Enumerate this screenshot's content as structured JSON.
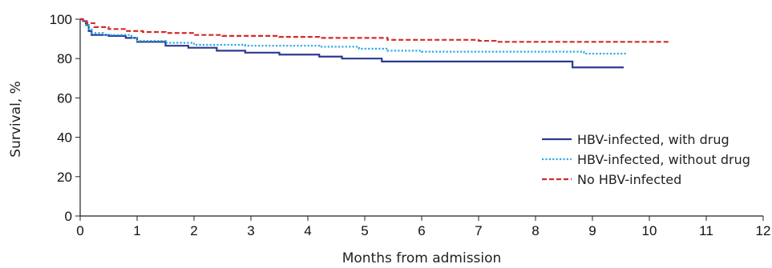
{
  "chart_data": {
    "type": "line",
    "step": true,
    "xlabel": "Months from admission",
    "ylabel": "Survival, %",
    "xlim": [
      0,
      12
    ],
    "ylim": [
      0,
      100
    ],
    "x_ticks": [
      0,
      1,
      2,
      3,
      4,
      5,
      6,
      7,
      8,
      9,
      10,
      11,
      12
    ],
    "y_ticks": [
      0,
      20,
      40,
      60,
      80,
      100
    ],
    "grid": false,
    "legend_position": "right",
    "series": [
      {
        "name": "HBV-infected, with drug",
        "color": "#2b3a8f",
        "dash": "solid",
        "points": [
          [
            0,
            100
          ],
          [
            0.05,
            99
          ],
          [
            0.1,
            97
          ],
          [
            0.15,
            94
          ],
          [
            0.2,
            92
          ],
          [
            0.5,
            91.5
          ],
          [
            0.8,
            90.5
          ],
          [
            1.0,
            88.5
          ],
          [
            1.5,
            86.5
          ],
          [
            1.9,
            85.5
          ],
          [
            2.4,
            84
          ],
          [
            2.9,
            83
          ],
          [
            3.5,
            82
          ],
          [
            4.2,
            81
          ],
          [
            4.6,
            80
          ],
          [
            5.3,
            78.5
          ],
          [
            6.0,
            78.5
          ],
          [
            8.6,
            78.5
          ],
          [
            8.65,
            75.5
          ],
          [
            9.55,
            75.5
          ]
        ]
      },
      {
        "name": "HBV-infected, without drug",
        "color": "#29abe2",
        "dash": "dotted",
        "points": [
          [
            0,
            100
          ],
          [
            0.05,
            99
          ],
          [
            0.1,
            97
          ],
          [
            0.15,
            95
          ],
          [
            0.2,
            93
          ],
          [
            0.4,
            92
          ],
          [
            0.9,
            90.5
          ],
          [
            1.0,
            89
          ],
          [
            1.5,
            88
          ],
          [
            2.0,
            87
          ],
          [
            2.9,
            86.5
          ],
          [
            4.2,
            86
          ],
          [
            4.9,
            85
          ],
          [
            5.4,
            84
          ],
          [
            6.0,
            83.5
          ],
          [
            8.8,
            83.5
          ],
          [
            8.85,
            82.5
          ],
          [
            9.6,
            82.5
          ]
        ]
      },
      {
        "name": "No HBV-infected",
        "color": "#d42a2a",
        "dash": "dashed",
        "points": [
          [
            0,
            100
          ],
          [
            0.05,
            99
          ],
          [
            0.12,
            98
          ],
          [
            0.25,
            96
          ],
          [
            0.5,
            95
          ],
          [
            0.8,
            94
          ],
          [
            1.1,
            93.5
          ],
          [
            1.5,
            93
          ],
          [
            2.0,
            92
          ],
          [
            2.5,
            91.5
          ],
          [
            3.5,
            91
          ],
          [
            4.2,
            90.5
          ],
          [
            5.4,
            89.5
          ],
          [
            7.0,
            89
          ],
          [
            7.3,
            88.5
          ],
          [
            10.35,
            88.5
          ]
        ]
      }
    ]
  }
}
